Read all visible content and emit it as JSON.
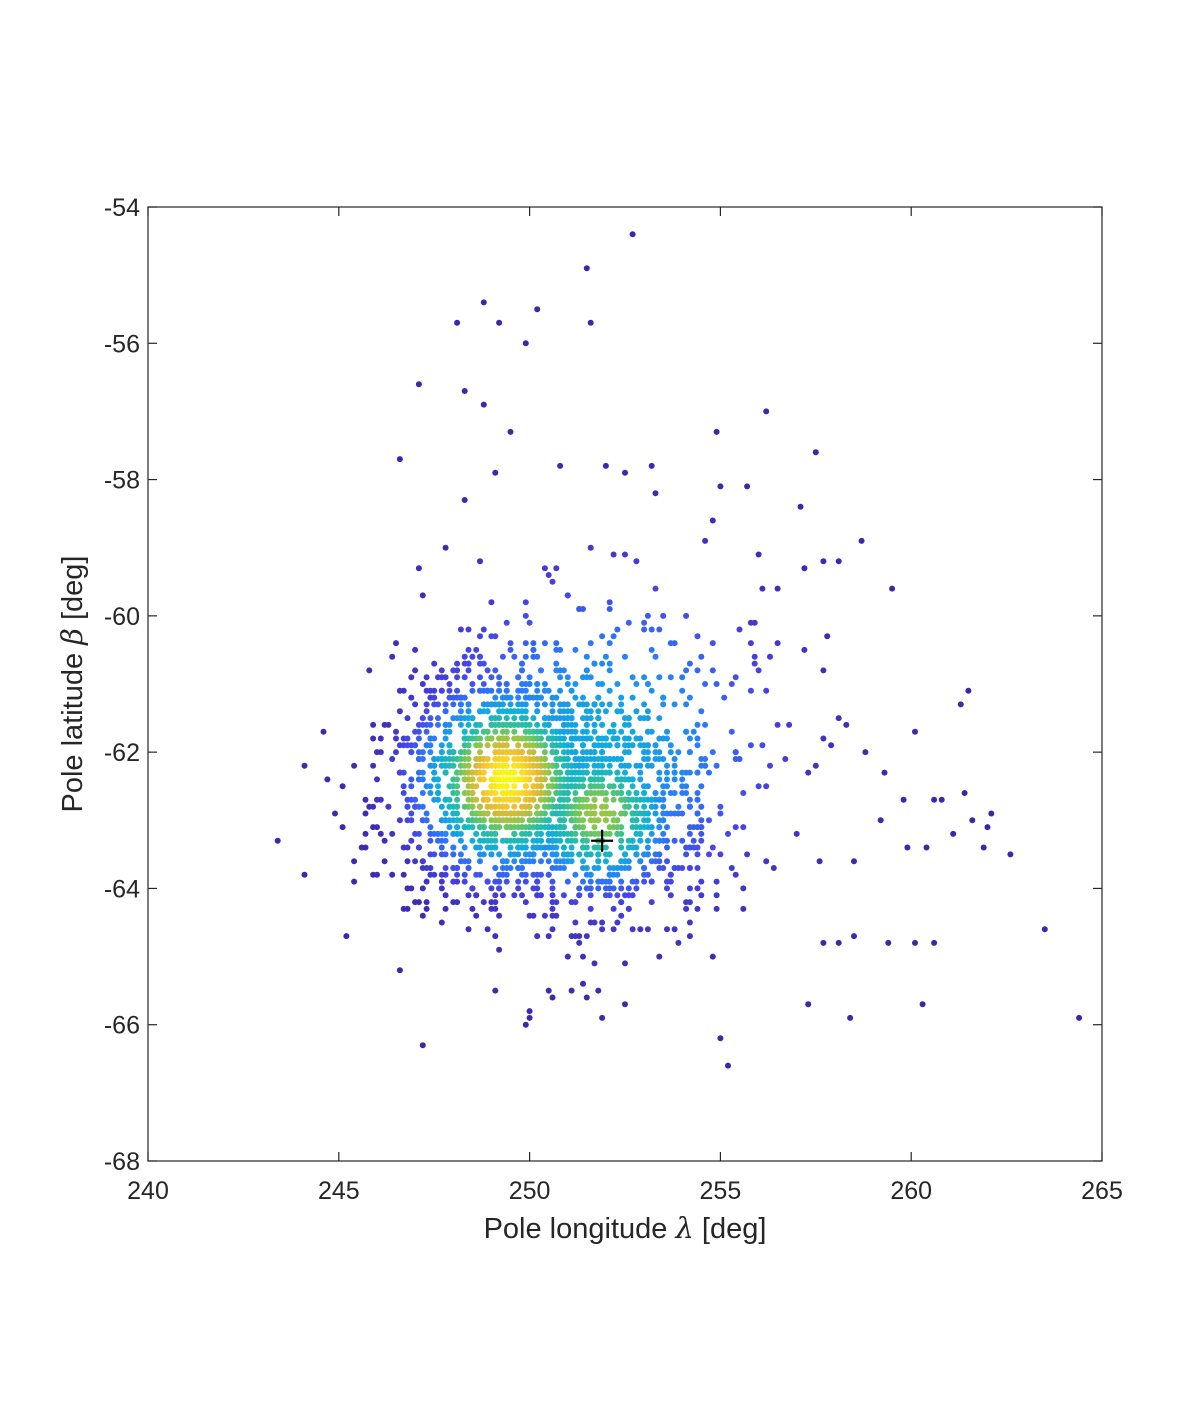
{
  "chart_data": {
    "type": "scatter",
    "xlabel": {
      "prefix": "Pole longitude ",
      "symbol": "λ",
      "suffix": " [deg]"
    },
    "ylabel": {
      "prefix": "Pole latitude ",
      "symbol": "β",
      "suffix": " [deg]"
    },
    "xlim": [
      240,
      265
    ],
    "ylim": [
      -68,
      -54
    ],
    "xticks": [
      240,
      245,
      250,
      255,
      260,
      265
    ],
    "yticks": [
      -68,
      -66,
      -64,
      -62,
      -60,
      -58,
      -56,
      -54
    ],
    "xtick_labels": [
      "240",
      "245",
      "250",
      "255",
      "260",
      "265"
    ],
    "ytick_labels": [
      "-68",
      "-66",
      "-64",
      "-62",
      "-60",
      "-58",
      "-56",
      "-54"
    ],
    "grid": false,
    "colormap": "parula",
    "colors": {
      "low": "#3e26a8",
      "mid": "#1fa8d8",
      "high": "#f9fb0e",
      "marker": "#000000",
      "axis": "#262626"
    },
    "density_center": {
      "lambda": 249.4,
      "beta": -62.4
    },
    "marker": {
      "lambda": 251.9,
      "beta": -63.3,
      "symbol": "+"
    },
    "outliers": [
      [
        252.7,
        -54.4
      ],
      [
        251.5,
        -54.9
      ],
      [
        248.8,
        -55.4
      ],
      [
        250.2,
        -55.5
      ],
      [
        248.1,
        -55.7
      ],
      [
        249.2,
        -55.7
      ],
      [
        251.6,
        -55.7
      ],
      [
        249.9,
        -56.0
      ],
      [
        247.1,
        -56.6
      ],
      [
        248.3,
        -56.7
      ],
      [
        248.8,
        -56.9
      ],
      [
        256.2,
        -57.0
      ],
      [
        249.5,
        -57.3
      ],
      [
        254.9,
        -57.3
      ],
      [
        257.5,
        -57.6
      ],
      [
        246.6,
        -57.7
      ],
      [
        250.8,
        -57.8
      ],
      [
        252.0,
        -57.8
      ],
      [
        253.2,
        -57.8
      ],
      [
        252.5,
        -57.9
      ],
      [
        249.1,
        -57.9
      ],
      [
        255.0,
        -58.1
      ],
      [
        255.7,
        -58.1
      ],
      [
        253.3,
        -58.2
      ],
      [
        257.1,
        -58.4
      ],
      [
        258.7,
        -58.9
      ],
      [
        259.5,
        -59.6
      ],
      [
        245.8,
        -60.8
      ],
      [
        243.4,
        -63.3
      ],
      [
        244.1,
        -63.8
      ],
      [
        245.1,
        -63.1
      ],
      [
        245.2,
        -64.7
      ],
      [
        246.6,
        -65.2
      ],
      [
        247.2,
        -66.3
      ],
      [
        249.1,
        -65.5
      ],
      [
        250.0,
        -65.8
      ],
      [
        250.6,
        -65.6
      ],
      [
        251.9,
        -65.9
      ],
      [
        251.8,
        -65.5
      ],
      [
        252.5,
        -65.7
      ],
      [
        255.0,
        -66.2
      ],
      [
        255.2,
        -66.6
      ],
      [
        257.3,
        -65.7
      ],
      [
        258.4,
        -65.9
      ],
      [
        260.3,
        -65.7
      ],
      [
        264.4,
        -65.9
      ],
      [
        263.5,
        -64.6
      ],
      [
        261.3,
        -61.3
      ],
      [
        261.5,
        -61.1
      ],
      [
        262.1,
        -62.9
      ],
      [
        262.6,
        -63.5
      ],
      [
        261.9,
        -63.4
      ],
      [
        262.0,
        -63.1
      ],
      [
        260.1,
        -61.7
      ],
      [
        259.8,
        -62.7
      ],
      [
        260.6,
        -62.7
      ],
      [
        261.4,
        -62.6
      ],
      [
        260.8,
        -62.7
      ],
      [
        261.6,
        -63.0
      ],
      [
        261.1,
        -63.2
      ],
      [
        259.4,
        -64.8
      ],
      [
        260.1,
        -64.8
      ],
      [
        260.6,
        -64.8
      ],
      [
        258.5,
        -64.7
      ],
      [
        257.7,
        -64.8
      ],
      [
        258.1,
        -64.8
      ],
      [
        259.2,
        -63.0
      ],
      [
        258.8,
        -62.0
      ],
      [
        259.3,
        -62.3
      ],
      [
        257.9,
        -61.9
      ],
      [
        256.5,
        -61.6
      ],
      [
        257.2,
        -60.5
      ],
      [
        257.8,
        -60.3
      ],
      [
        258.1,
        -59.2
      ],
      [
        257.7,
        -59.2
      ],
      [
        257.2,
        -59.3
      ],
      [
        256.5,
        -59.6
      ],
      [
        260.4,
        -63.4
      ],
      [
        259.9,
        -63.4
      ],
      [
        258.5,
        -63.6
      ]
    ]
  }
}
